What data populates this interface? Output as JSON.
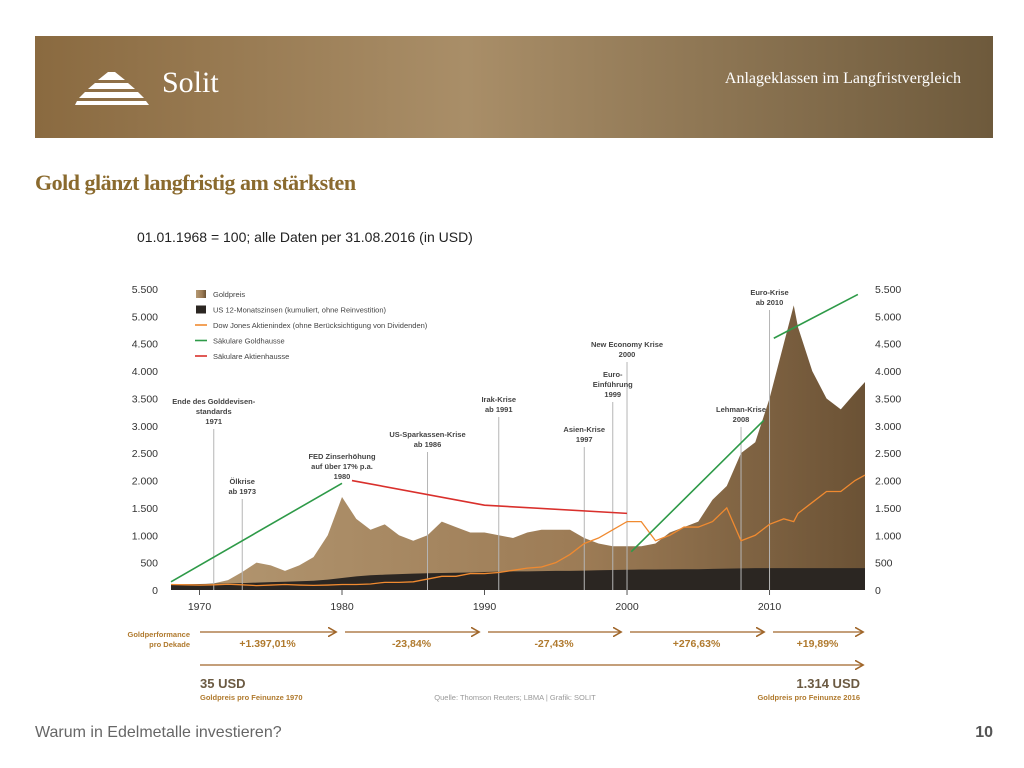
{
  "header": {
    "logo": "Solit",
    "section": "Anlageklassen im Langfristvergleich"
  },
  "heading": "Gold glänzt langfristig am stärksten",
  "chart_data": {
    "type": "area",
    "subtitle": "01.01.1968 = 100; alle Daten per 31.08.2016 (in USD)",
    "x": [
      1968,
      1969,
      1970,
      1971,
      1972,
      1973,
      1974,
      1975,
      1976,
      1977,
      1978,
      1979,
      1980,
      1981,
      1982,
      1983,
      1984,
      1985,
      1986,
      1987,
      1988,
      1989,
      1990,
      1991,
      1992,
      1993,
      1994,
      1995,
      1996,
      1997,
      1998,
      1999,
      2000,
      2001,
      2002,
      2003,
      2004,
      2005,
      2006,
      2007,
      2008,
      2009,
      2010,
      2011,
      2011.7,
      2012,
      2013,
      2014,
      2015,
      2016,
      2016.7
    ],
    "series": [
      {
        "name": "Goldpreis",
        "kind": "area",
        "color": "#9c7b55",
        "values": [
          100,
          110,
          100,
          120,
          180,
          330,
          500,
          450,
          350,
          450,
          600,
          1000,
          1700,
          1300,
          1100,
          1200,
          1000,
          900,
          1000,
          1250,
          1150,
          1050,
          1050,
          1000,
          950,
          1050,
          1100,
          1100,
          1100,
          950,
          850,
          800,
          800,
          800,
          850,
          1050,
          1150,
          1250,
          1650,
          1900,
          2500,
          2700,
          3500,
          4500,
          5200,
          4800,
          4000,
          3500,
          3300,
          3600,
          3800
        ]
      },
      {
        "name": "US 12-Monatszinsen (kumuliert, ohne Reinvestition)",
        "kind": "area",
        "color": "#2b2622",
        "values": [
          100,
          105,
          110,
          115,
          120,
          125,
          135,
          145,
          150,
          160,
          170,
          190,
          220,
          250,
          270,
          280,
          290,
          300,
          305,
          310,
          315,
          320,
          330,
          335,
          340,
          340,
          345,
          350,
          350,
          355,
          360,
          365,
          370,
          375,
          375,
          378,
          380,
          380,
          385,
          390,
          395,
          400,
          400,
          400,
          400,
          400,
          400,
          400,
          400,
          400,
          400
        ]
      },
      {
        "name": "Dow Jones Aktienindex (ohne Berücksichtigung von Dividenden)",
        "kind": "line",
        "color": "#f08a30",
        "values": [
          100,
          95,
          90,
          95,
          105,
          95,
          80,
          90,
          100,
          90,
          85,
          90,
          100,
          100,
          110,
          140,
          140,
          150,
          200,
          250,
          250,
          300,
          300,
          320,
          360,
          400,
          420,
          500,
          650,
          850,
          950,
          1100,
          1250,
          1250,
          900,
          1000,
          1150,
          1150,
          1250,
          1500,
          900,
          1000,
          1200,
          1300,
          1250,
          1400,
          1600,
          1800,
          1800,
          2000,
          2100
        ]
      },
      {
        "name": "Säkulare Goldhausse",
        "kind": "trend",
        "color": "#2e9a48",
        "x": [
          1968,
          1980,
          null,
          2000.3,
          2009.6,
          null,
          2010.3,
          2016.2
        ],
        "values": [
          150,
          1950,
          null,
          700,
          3100,
          null,
          4600,
          5400
        ]
      },
      {
        "name": "Säkulare Aktienhausse",
        "kind": "trend",
        "color": "#d9302c",
        "x": [
          1980.7,
          1990,
          2000
        ],
        "values": [
          2000,
          1550,
          1400
        ]
      }
    ],
    "xlim": [
      1968,
      2016.7
    ],
    "xticks": [
      1970,
      1980,
      1990,
      2000,
      2010
    ],
    "ylim": [
      0,
      5500
    ],
    "yticks": [
      0,
      500,
      {
        "value": 1000,
        "label": "1.000"
      },
      {
        "value": 1500,
        "label": "1.500"
      },
      {
        "value": 2000,
        "label": "2.000"
      },
      {
        "value": 2500,
        "label": "2.500"
      },
      {
        "value": 3000,
        "label": "3.000"
      },
      {
        "value": 3500,
        "label": "3.500"
      },
      {
        "value": 4000,
        "label": "4.000"
      },
      {
        "value": 4500,
        "label": "4.500"
      },
      {
        "value": 5000,
        "label": "5.000"
      },
      {
        "value": 5500,
        "label": "5.500"
      }
    ],
    "y2lim": [
      0,
      5500
    ],
    "y2ticks": [
      0,
      500,
      {
        "value": 1000,
        "label": "1.000"
      },
      {
        "value": 1500,
        "label": "1.500"
      },
      {
        "value": 2000,
        "label": "2.000"
      },
      {
        "value": 2500,
        "label": "2.500"
      },
      {
        "value": 3000,
        "label": "3.000"
      },
      {
        "value": 3500,
        "label": "3.500"
      },
      {
        "value": 4000,
        "label": "4.000"
      },
      {
        "value": 4500,
        "label": "4.500"
      },
      {
        "value": 5000,
        "label": "5.000"
      },
      {
        "value": 5500,
        "label": "5.500"
      }
    ],
    "legend": "top-left",
    "annotations": [
      {
        "x": 1971,
        "lines": [
          "Ende des Golddevisen-",
          "standards",
          "1971"
        ]
      },
      {
        "x": 1973,
        "lines": [
          "Ölkrise",
          "ab 1973"
        ]
      },
      {
        "x": 1980,
        "lines": [
          "FED Zinserhöhung",
          "auf über 17% p.a.",
          "1980"
        ]
      },
      {
        "x": 1986,
        "lines": [
          "US-Sparkassen-Krise",
          "ab 1986"
        ]
      },
      {
        "x": 1991,
        "lines": [
          "Irak-Krise",
          "ab 1991"
        ]
      },
      {
        "x": 1997,
        "lines": [
          "Asien-Krise",
          "1997"
        ]
      },
      {
        "x": 1999,
        "lines": [
          "Euro-",
          "Einführung",
          "1999"
        ]
      },
      {
        "x": 2000,
        "lines": [
          "New Economy Krise",
          "2000"
        ]
      },
      {
        "x": 2008,
        "lines": [
          "Lehman-Krise",
          "2008"
        ]
      },
      {
        "x": 2010,
        "lines": [
          "Euro-Krise",
          "ab 2010"
        ]
      }
    ],
    "performance_label": [
      "Goldperformance",
      "pro Dekade"
    ],
    "decade_performance": [
      "+1.397,01%",
      "-23,84%",
      "-27,43%",
      "+276,63%",
      "+19,89%"
    ],
    "start_price": "35 USD",
    "start_caption": "Goldpreis pro Feinunze 1970",
    "end_price": "1.314 USD",
    "end_caption": "Goldpreis pro Feinunze 2016",
    "source": "Quelle: Thomson Reuters; LBMA | Grafik: SOLIT"
  },
  "footer": {
    "text": "Warum in Edelmetalle investieren?",
    "page": "10"
  }
}
